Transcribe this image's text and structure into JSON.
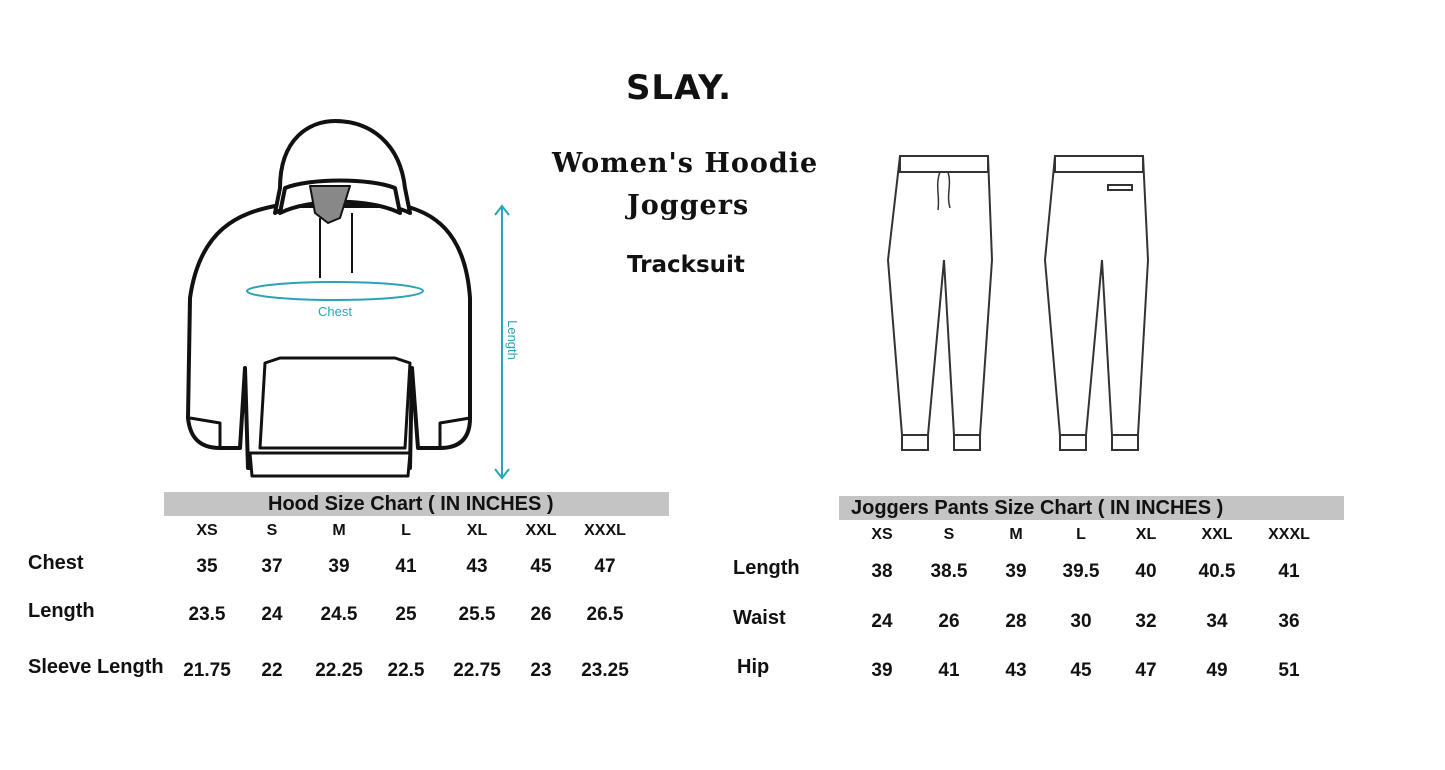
{
  "brand": "SLAY.",
  "product": {
    "line1": "Women's  Hoodie",
    "line2": "Joggers",
    "line3": "Tracksuit"
  },
  "hoodie_diagram": {
    "chest_label": "Chest",
    "length_label": "Length",
    "measure_color": "#2aa3b5"
  },
  "hood_chart": {
    "title": "Hood Size Chart ( IN INCHES )",
    "sizes": [
      "XS",
      "S",
      "M",
      "L",
      "XL",
      "XXL",
      "XXXL"
    ],
    "rows": [
      {
        "label": "Chest",
        "values": [
          "35",
          "37",
          "39",
          "41",
          "43",
          "45",
          "47"
        ]
      },
      {
        "label": "Length",
        "values": [
          "23.5",
          "24",
          "24.5",
          "25",
          "25.5",
          "26",
          "26.5"
        ]
      },
      {
        "label": "Sleeve Length",
        "values": [
          "21.75",
          "22",
          "22.25",
          "22.5",
          "22.75",
          "23",
          "23.25"
        ]
      }
    ]
  },
  "joggers_chart": {
    "title": "Joggers Pants Size Chart ( IN INCHES )",
    "sizes": [
      "XS",
      "S",
      "M",
      "L",
      "XL",
      "XXL",
      "XXXL"
    ],
    "rows": [
      {
        "label": "Length",
        "values": [
          "38",
          "38.5",
          "39",
          "39.5",
          "40",
          "40.5",
          "41"
        ]
      },
      {
        "label": "Waist",
        "values": [
          "24",
          "26",
          "28",
          "30",
          "32",
          "34",
          "36"
        ]
      },
      {
        "label": "Hip",
        "values": [
          "39",
          "41",
          "43",
          "45",
          "47",
          "49",
          "51"
        ]
      }
    ]
  }
}
